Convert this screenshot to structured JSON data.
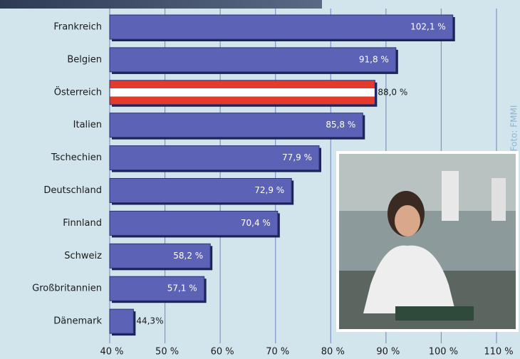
{
  "chart_data": {
    "type": "hbar",
    "categories": [
      "Frankreich",
      "Belgien",
      "Österreich",
      "Italien",
      "Tschechien",
      "Deutschland",
      "Finnland",
      "Schweiz",
      "Großbritannien",
      "Dänemark"
    ],
    "values": [
      102.1,
      91.8,
      88.0,
      85.8,
      77.9,
      72.9,
      70.4,
      58.2,
      57.1,
      44.3
    ],
    "value_labels": [
      "102,1 %",
      "91,8 %",
      "88,0 %",
      "85,8 %",
      "77,9 %",
      "72,9 %",
      "70,4 %",
      "58,2 %",
      "57,1 %",
      "44,3%"
    ],
    "colors": [
      "#5c63b6",
      "#5c63b6",
      "url(#at-flag)",
      "#5c63b6",
      "#5c63b6",
      "#5c63b6",
      "#5c63b6",
      "#5c63b6",
      "#5c63b6",
      "#5c63b6"
    ],
    "xlim": [
      40,
      110
    ],
    "xticks": [
      {
        "value": 40,
        "label": "40 %"
      },
      {
        "value": 50,
        "label": "50 %"
      },
      {
        "value": 60,
        "label": "60 %"
      },
      {
        "value": 70,
        "label": "70 %"
      },
      {
        "value": 80,
        "label": "80 %"
      },
      {
        "value": 90,
        "label": "90 %"
      },
      {
        "value": 100,
        "label": "100 %"
      },
      {
        "value": 110,
        "label": "110 %"
      }
    ],
    "grid": true,
    "credit": "Foto: FMMI"
  }
}
